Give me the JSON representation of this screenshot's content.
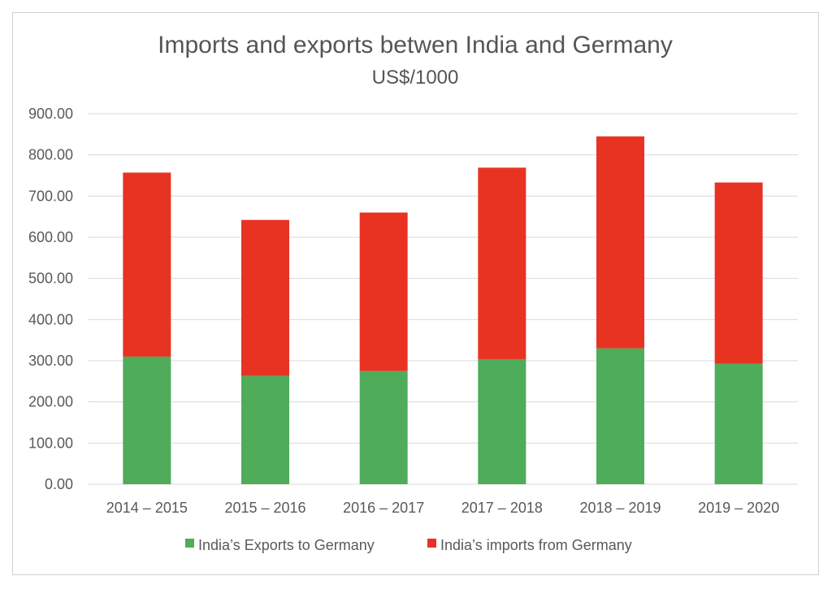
{
  "chart_data": {
    "type": "bar",
    "stacked": true,
    "title": "Imports and exports betwen India and Germany",
    "subtitle": "US$/1000",
    "xlabel": "",
    "ylabel": "",
    "categories": [
      "2014 – 2015",
      "2015 – 2016",
      "2016 – 2017",
      "2017 – 2018",
      "2018 – 2019",
      "2019 – 2020"
    ],
    "series": [
      {
        "name": "India’s Exports to Germany",
        "color": "#4eac5b",
        "values": [
          310,
          263,
          275,
          304,
          330,
          293
        ]
      },
      {
        "name": "India’s imports from Germany",
        "color": "#e83323",
        "values": [
          447,
          379,
          385,
          465,
          515,
          440
        ]
      }
    ],
    "ylim": [
      0,
      900
    ],
    "yticks": [
      "0.00",
      "100.00",
      "200.00",
      "300.00",
      "400.00",
      "500.00",
      "600.00",
      "700.00",
      "800.00",
      "900.00"
    ],
    "grid": true,
    "legend_position": "bottom"
  }
}
